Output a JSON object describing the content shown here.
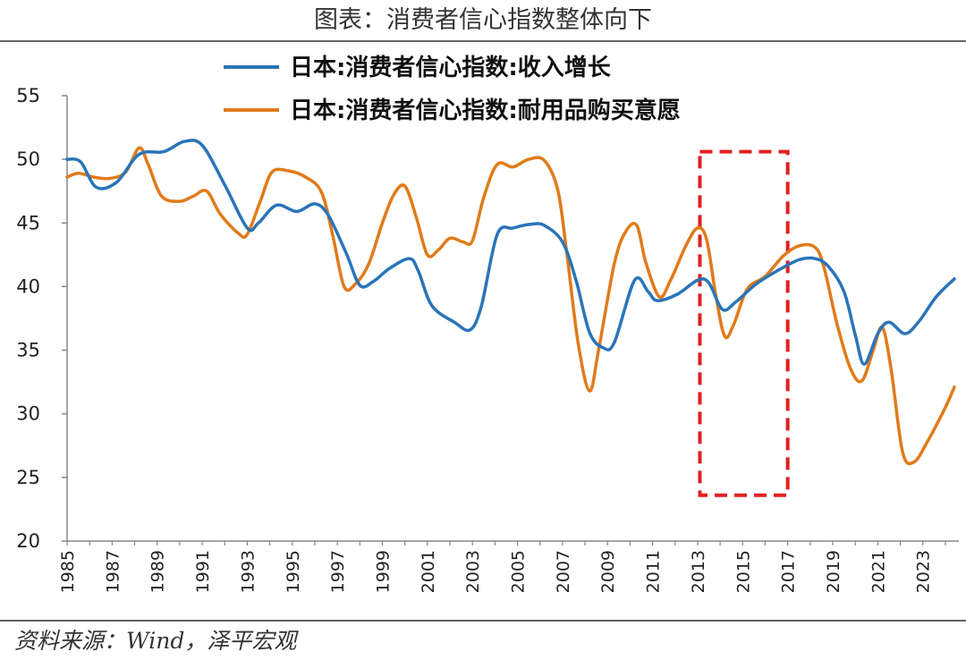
{
  "header": {
    "title": "图表：消费者信心指数整体向下"
  },
  "footer": {
    "source": "资料来源：Wind，泽平宏观"
  },
  "chart_data": {
    "type": "line",
    "title": "图表：消费者信心指数整体向下",
    "xlabel": "",
    "ylabel": "",
    "ylim": [
      20,
      55
    ],
    "yticks": [
      "20",
      "25",
      "30",
      "35",
      "40",
      "45",
      "50",
      "55"
    ],
    "xlim": [
      1985,
      2024.6
    ],
    "xticks": [
      "1985",
      "1987",
      "1989",
      "1991",
      "1993",
      "1995",
      "1997",
      "1999",
      "2001",
      "2003",
      "2005",
      "2007",
      "2009",
      "2011",
      "2013",
      "2015",
      "2017",
      "2019",
      "2021",
      "2023"
    ],
    "grid": false,
    "legend": "top",
    "highlight_box": {
      "x_range": [
        2013.1,
        2017.0
      ],
      "y_range": [
        23.6,
        50.6
      ],
      "color": "#e02020"
    },
    "series": [
      {
        "name": "日本:消费者信心指数:收入增长",
        "color": "#2a74b8",
        "points": [
          [
            1985,
            50
          ],
          [
            1985.6,
            49.8
          ],
          [
            1986.3,
            47.8
          ],
          [
            1987.2,
            48.2
          ],
          [
            1988.2,
            50.4
          ],
          [
            1989.3,
            50.6
          ],
          [
            1990.2,
            51.4
          ],
          [
            1991.0,
            51.1
          ],
          [
            1992.0,
            48
          ],
          [
            1993.0,
            44.6
          ],
          [
            1993.5,
            45
          ],
          [
            1994.3,
            46.4
          ],
          [
            1995.2,
            45.9
          ],
          [
            1996.0,
            46.5
          ],
          [
            1996.6,
            45.6
          ],
          [
            1997.4,
            42.6
          ],
          [
            1998.0,
            40.1
          ],
          [
            1998.6,
            40.4
          ],
          [
            1999.3,
            41.4
          ],
          [
            2000.2,
            42.2
          ],
          [
            2000.6,
            41.2
          ],
          [
            2001.2,
            38.5
          ],
          [
            2002.2,
            37.2
          ],
          [
            2002.9,
            36.6
          ],
          [
            2003.4,
            38.5
          ],
          [
            2004.1,
            44.1
          ],
          [
            2004.8,
            44.6
          ],
          [
            2005.6,
            44.9
          ],
          [
            2006.2,
            44.8
          ],
          [
            2007.0,
            43.5
          ],
          [
            2007.6,
            40.5
          ],
          [
            2008.2,
            36.4
          ],
          [
            2008.8,
            35.2
          ],
          [
            2009.3,
            35.6
          ],
          [
            2010.2,
            40.5
          ],
          [
            2010.8,
            39.6
          ],
          [
            2011.2,
            38.9
          ],
          [
            2012.1,
            39.4
          ],
          [
            2013.0,
            40.5
          ],
          [
            2013.5,
            40.3
          ],
          [
            2014.1,
            38.2
          ],
          [
            2014.7,
            38.8
          ],
          [
            2015.6,
            40.2
          ],
          [
            2016.6,
            41.3
          ],
          [
            2017.5,
            42.1
          ],
          [
            2018.2,
            42.2
          ],
          [
            2018.8,
            41.6
          ],
          [
            2019.5,
            39.6
          ],
          [
            2020.0,
            36.2
          ],
          [
            2020.4,
            33.9
          ],
          [
            2021.0,
            36.3
          ],
          [
            2021.5,
            37.2
          ],
          [
            2022.2,
            36.3
          ],
          [
            2022.8,
            37.2
          ],
          [
            2023.6,
            39.2
          ],
          [
            2024.4,
            40.6
          ]
        ]
      },
      {
        "name": "日本:消费者信心指数:耐用品购买意愿",
        "color": "#e07b1a",
        "points": [
          [
            1985,
            48.6
          ],
          [
            1985.5,
            48.9
          ],
          [
            1986.2,
            48.6
          ],
          [
            1986.9,
            48.5
          ],
          [
            1987.6,
            49.0
          ],
          [
            1988.2,
            50.9
          ],
          [
            1988.6,
            49.6
          ],
          [
            1989.2,
            47.1
          ],
          [
            1990.0,
            46.7
          ],
          [
            1990.6,
            47.1
          ],
          [
            1991.2,
            47.5
          ],
          [
            1991.8,
            45.7
          ],
          [
            1992.6,
            44.2
          ],
          [
            1993.0,
            44.1
          ],
          [
            1993.6,
            46.8
          ],
          [
            1994.1,
            49.0
          ],
          [
            1994.8,
            49.1
          ],
          [
            1995.6,
            48.6
          ],
          [
            1996.3,
            47.4
          ],
          [
            1996.8,
            44.0
          ],
          [
            1997.3,
            40.0
          ],
          [
            1997.8,
            40.2
          ],
          [
            1998.4,
            41.8
          ],
          [
            1999.0,
            45.0
          ],
          [
            1999.5,
            47.2
          ],
          [
            2000.0,
            47.9
          ],
          [
            2000.5,
            45.5
          ],
          [
            2001.0,
            42.5
          ],
          [
            2001.5,
            42.9
          ],
          [
            2002.0,
            43.8
          ],
          [
            2002.6,
            43.5
          ],
          [
            2003.0,
            43.6
          ],
          [
            2003.5,
            47.0
          ],
          [
            2004.1,
            49.6
          ],
          [
            2004.8,
            49.4
          ],
          [
            2005.5,
            50.0
          ],
          [
            2006.2,
            49.9
          ],
          [
            2006.8,
            47.5
          ],
          [
            2007.2,
            42.5
          ],
          [
            2007.7,
            35.5
          ],
          [
            2008.2,
            31.8
          ],
          [
            2008.6,
            35.0
          ],
          [
            2009.3,
            41.8
          ],
          [
            2009.8,
            44.3
          ],
          [
            2010.3,
            44.8
          ],
          [
            2010.7,
            41.9
          ],
          [
            2011.3,
            39.2
          ],
          [
            2011.8,
            40.5
          ],
          [
            2012.5,
            43.3
          ],
          [
            2013.0,
            44.6
          ],
          [
            2013.4,
            43.7
          ],
          [
            2013.8,
            39.4
          ],
          [
            2014.2,
            36.1
          ],
          [
            2014.6,
            37.0
          ],
          [
            2015.2,
            39.8
          ],
          [
            2016.0,
            40.8
          ],
          [
            2016.8,
            42.4
          ],
          [
            2017.5,
            43.2
          ],
          [
            2018.2,
            43.1
          ],
          [
            2018.6,
            41.6
          ],
          [
            2019.2,
            37.0
          ],
          [
            2019.8,
            33.5
          ],
          [
            2020.3,
            32.6
          ],
          [
            2020.8,
            35.0
          ],
          [
            2021.2,
            36.8
          ],
          [
            2021.6,
            33.4
          ],
          [
            2022.1,
            27.0
          ],
          [
            2022.6,
            26.2
          ],
          [
            2023.2,
            27.8
          ],
          [
            2024.0,
            30.5
          ],
          [
            2024.4,
            32.1
          ]
        ]
      }
    ]
  }
}
